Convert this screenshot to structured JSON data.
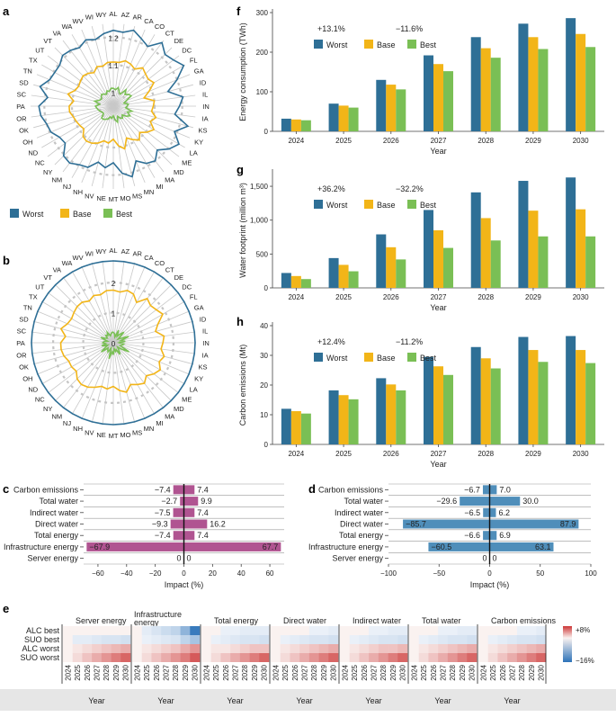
{
  "colors": {
    "worst": "#2e6f96",
    "base": "#f2b518",
    "best": "#7abf55",
    "impact": "#b05491",
    "impact_d": "#4f8eba",
    "grid": "#bbbbbb"
  },
  "panels": {
    "a": "a",
    "b": "b",
    "c": "c",
    "d": "d",
    "e": "e",
    "f": "f",
    "g": "g",
    "h": "h"
  },
  "legend": {
    "worst": "Worst",
    "base": "Base",
    "best": "Best"
  },
  "chart_data": [
    {
      "id": "a",
      "type": "radar",
      "states": [
        "AL",
        "AZ",
        "AR",
        "CA",
        "CO",
        "CT",
        "DE",
        "DC",
        "FL",
        "GA",
        "ID",
        "IL",
        "IN",
        "IA",
        "KS",
        "KY",
        "LA",
        "ME",
        "MD",
        "MA",
        "MI",
        "MN",
        "MS",
        "MO",
        "MT",
        "NE",
        "NV",
        "NH",
        "NJ",
        "NM",
        "NY",
        "NC",
        "ND",
        "OH",
        "OK",
        "OR",
        "PA",
        "SC",
        "SD",
        "TN",
        "TX",
        "UT",
        "VT",
        "VA",
        "WA",
        "WV",
        "WI",
        "WY"
      ],
      "ring_labels": [
        "1",
        "1.1",
        "1.2"
      ],
      "rmin": 0.95,
      "rmax": 1.25,
      "series": [
        {
          "name": "Worst",
          "values": [
            1.225,
            1.22,
            1.235,
            1.215,
            1.2,
            1.24,
            1.215,
            1.225,
            1.245,
            1.2,
            1.155,
            1.205,
            1.19,
            1.175,
            1.23,
            1.19,
            1.225,
            1.205,
            1.175,
            1.2,
            1.19,
            1.165,
            1.215,
            1.195,
            1.155,
            1.175,
            1.16,
            1.19,
            1.195,
            1.21,
            1.205,
            1.17,
            1.175,
            1.195,
            1.2,
            1.215,
            1.22,
            1.19,
            1.225,
            1.2,
            1.195,
            1.195,
            1.21,
            1.205,
            1.195,
            1.21,
            1.2,
            1.215
          ]
        },
        {
          "name": "Base",
          "values": [
            1.11,
            1.11,
            1.12,
            1.115,
            1.105,
            1.125,
            1.115,
            1.11,
            1.12,
            1.09,
            1.065,
            1.1,
            1.095,
            1.09,
            1.11,
            1.095,
            1.12,
            1.105,
            1.085,
            1.105,
            1.09,
            1.075,
            1.11,
            1.095,
            1.07,
            1.085,
            1.08,
            1.095,
            1.105,
            1.11,
            1.105,
            1.085,
            1.09,
            1.095,
            1.1,
            1.11,
            1.11,
            1.095,
            1.12,
            1.1,
            1.095,
            1.1,
            1.105,
            1.1,
            1.09,
            1.105,
            1.1,
            1.11
          ]
        },
        {
          "name": "Best",
          "values": [
            1.015,
            1.01,
            1.02,
            1.005,
            1.0,
            1.025,
            1.01,
            1.02,
            1.025,
            1.0,
            0.99,
            1.005,
            1.0,
            0.995,
            1.02,
            1.005,
            1.02,
            1.01,
            0.995,
            1.005,
            1.0,
            0.99,
            1.01,
            1.0,
            0.985,
            0.995,
            0.99,
            1.0,
            1.005,
            1.01,
            1.01,
            0.995,
            0.995,
            1.0,
            1.005,
            1.01,
            1.015,
            1.0,
            1.02,
            1.005,
            1.0,
            1.005,
            1.01,
            1.005,
            1.0,
            1.01,
            1.005,
            1.015
          ]
        }
      ]
    },
    {
      "id": "b",
      "type": "radar",
      "states": [
        "AL",
        "AZ",
        "AR",
        "CA",
        "CO",
        "CT",
        "DE",
        "DC",
        "FL",
        "GA",
        "ID",
        "IL",
        "IN",
        "IA",
        "KS",
        "KY",
        "LA",
        "ME",
        "MD",
        "MA",
        "MI",
        "MN",
        "MS",
        "MO",
        "MT",
        "NE",
        "NV",
        "NH",
        "NJ",
        "NM",
        "NY",
        "NC",
        "ND",
        "OH",
        "OK",
        "OR",
        "PA",
        "SC",
        "SD",
        "TN",
        "TX",
        "UT",
        "VT",
        "VA",
        "WA",
        "WV",
        "WI",
        "WY"
      ],
      "ring_labels": [
        "0",
        "1",
        "2"
      ],
      "rmin": 0,
      "rmax": 2.75,
      "series": [
        {
          "name": "Worst",
          "values": [
            2.72,
            2.72,
            2.72,
            2.72,
            2.72,
            2.72,
            2.72,
            2.72,
            2.72,
            2.72,
            2.72,
            2.72,
            2.72,
            2.72,
            2.72,
            2.72,
            2.72,
            2.72,
            2.72,
            2.72,
            2.72,
            2.72,
            2.72,
            2.72,
            2.72,
            2.72,
            2.72,
            2.72,
            2.72,
            2.72,
            2.72,
            2.72,
            2.72,
            2.72,
            2.72,
            2.72,
            2.72,
            2.72,
            2.72,
            2.72,
            2.72,
            2.72,
            2.72,
            2.72,
            2.72,
            2.72,
            2.72,
            2.72
          ]
        },
        {
          "name": "Base",
          "values": [
            1.75,
            1.7,
            1.8,
            1.75,
            1.55,
            1.85,
            1.75,
            1.8,
            1.9,
            1.6,
            1.45,
            1.7,
            1.65,
            1.6,
            1.75,
            1.65,
            1.8,
            1.7,
            1.55,
            1.7,
            1.6,
            1.5,
            1.7,
            1.6,
            1.45,
            1.55,
            1.5,
            1.6,
            1.7,
            1.75,
            1.7,
            1.55,
            1.6,
            1.6,
            1.7,
            1.75,
            1.75,
            1.6,
            1.8,
            1.65,
            1.6,
            1.65,
            1.7,
            1.7,
            1.6,
            1.7,
            1.65,
            1.75
          ]
        },
        {
          "name": "Best",
          "values": [
            0.35,
            0.3,
            0.2,
            0.45,
            0.25,
            0.35,
            0.5,
            0.2,
            0.3,
            0.55,
            0.25,
            0.4,
            0.2,
            0.35,
            0.3,
            0.25,
            0.6,
            0.35,
            0.2,
            0.3,
            0.45,
            0.25,
            0.3,
            0.2,
            0.4,
            0.3,
            0.55,
            0.2,
            0.35,
            0.3,
            0.25,
            0.5,
            0.3,
            0.2,
            0.4,
            0.25,
            0.35,
            0.3,
            0.2,
            0.45,
            0.3,
            0.25,
            0.35,
            0.3,
            0.4,
            0.25,
            0.3,
            0.35
          ]
        }
      ]
    },
    {
      "id": "c",
      "type": "diverging-bar",
      "categories": [
        "Carbon emissions",
        "Total water",
        "Indirect water",
        "Direct water",
        "Total energy",
        "Infrastructure energy",
        "Server energy"
      ],
      "neg": [
        -7.4,
        -2.7,
        -7.5,
        -9.3,
        -7.4,
        -67.9,
        0
      ],
      "pos": [
        7.4,
        9.9,
        7.4,
        16.2,
        7.4,
        67.7,
        0
      ],
      "neg_labels": [
        "−7.4",
        "−2.7",
        "−7.5",
        "−9.3",
        "−7.4",
        "−67.9",
        "0"
      ],
      "pos_labels": [
        "7.4",
        "9.9",
        "7.4",
        "16.2",
        "7.4",
        "67.7",
        "0"
      ],
      "xlim": [
        -70,
        70
      ],
      "xticks": [
        -60,
        -40,
        -20,
        0,
        20,
        40,
        60
      ],
      "xtick_labels": [
        "−60",
        "−40",
        "−20",
        "0",
        "20",
        "40",
        "60"
      ],
      "xlabel": "Impact (%)"
    },
    {
      "id": "d",
      "type": "diverging-bar",
      "categories": [
        "Carbon emissions",
        "Total water",
        "Indirect water",
        "Direct water",
        "Total energy",
        "Infrastructure energy",
        "Server energy"
      ],
      "neg": [
        -6.7,
        -29.6,
        -6.5,
        -85.7,
        -6.6,
        -60.5,
        0
      ],
      "pos": [
        7.0,
        30.0,
        6.2,
        87.9,
        6.9,
        63.1,
        0
      ],
      "neg_labels": [
        "−6.7",
        "−29.6",
        "−6.5",
        "−85.7",
        "−6.6",
        "−60.5",
        "0"
      ],
      "pos_labels": [
        "7.0",
        "30.0",
        "6.2",
        "87.9",
        "6.9",
        "63.1",
        "0"
      ],
      "xlim": [
        -100,
        100
      ],
      "xticks": [
        -100,
        -50,
        0,
        50,
        100
      ],
      "xtick_labels": [
        "−100",
        "−50",
        "0",
        "50",
        "100"
      ],
      "xlabel": "Impact (%)"
    },
    {
      "id": "e",
      "type": "heatmap",
      "groups": [
        "Server energy",
        "Infrastructure energy",
        "Total energy",
        "Direct water",
        "Indirect water",
        "Total water",
        "Carbon emissions"
      ],
      "rows": [
        "ALC best",
        "SUO best",
        "ALC worst",
        "SUO worst"
      ],
      "years": [
        "2024",
        "2025",
        "2026",
        "2027",
        "2028",
        "2029",
        "2030"
      ],
      "xlabel": "Year",
      "colorbar": {
        "max_label": "+8%",
        "min_label": "−16%",
        "vmax": 8,
        "vmin": -16
      },
      "values": [
        [
          [
            0,
            0,
            0,
            0,
            0,
            0,
            0
          ],
          [
            0,
            -1,
            -1,
            -1.5,
            -2,
            -2,
            -2.5
          ],
          [
            0,
            0.5,
            1,
            1.5,
            2,
            2.5,
            3
          ],
          [
            0,
            1,
            2,
            3,
            4,
            5,
            6
          ]
        ],
        [
          [
            0,
            -1,
            -2,
            -3,
            -4,
            -8,
            -15
          ],
          [
            0,
            -0.5,
            -1,
            -1.5,
            -2,
            -4,
            -6
          ],
          [
            0,
            0.5,
            1,
            1.5,
            2,
            3,
            4
          ],
          [
            0,
            1,
            2,
            3,
            4,
            5,
            6.5
          ]
        ],
        [
          [
            0,
            0,
            -0.5,
            -0.5,
            -1,
            -1,
            -1
          ],
          [
            0,
            -0.5,
            -1,
            -1.5,
            -2,
            -2,
            -2.5
          ],
          [
            0,
            0.5,
            0.5,
            1,
            1.5,
            2,
            2
          ],
          [
            0,
            1,
            2,
            3,
            4,
            5,
            6
          ]
        ],
        [
          [
            0,
            0,
            0,
            0,
            -0.5,
            -0.5,
            -1
          ],
          [
            0,
            -0.5,
            -1,
            -1.5,
            -2,
            -2,
            -2.5
          ],
          [
            0,
            0.5,
            1,
            1.5,
            2,
            2.5,
            3
          ],
          [
            0,
            1,
            2,
            3,
            4,
            5,
            6
          ]
        ],
        [
          [
            0,
            0,
            0,
            -0.5,
            -0.5,
            -1,
            -1
          ],
          [
            0,
            -0.5,
            -1,
            -1.5,
            -2,
            -2,
            -2.5
          ],
          [
            0,
            0.5,
            1,
            1.5,
            2,
            2,
            2.5
          ],
          [
            0,
            1,
            2,
            3,
            4,
            5,
            6
          ]
        ],
        [
          [
            0,
            0,
            0,
            -0.5,
            -0.5,
            -1,
            -1
          ],
          [
            0,
            -0.5,
            -1,
            -1.5,
            -2,
            -2,
            -2.5
          ],
          [
            0,
            0.5,
            1,
            1.5,
            2,
            2.5,
            3
          ],
          [
            0,
            1,
            2,
            3,
            4,
            5,
            6
          ]
        ],
        [
          [
            0,
            0,
            0,
            0,
            -0.5,
            -0.5,
            -1
          ],
          [
            0,
            -0.5,
            -1,
            -1.5,
            -2,
            -2,
            -2.5
          ],
          [
            0,
            0.5,
            1,
            1.5,
            2,
            2.5,
            3
          ],
          [
            0,
            1,
            2,
            3,
            4,
            5,
            6
          ]
        ]
      ]
    },
    {
      "id": "f",
      "type": "bar",
      "categories": [
        "2024",
        "2025",
        "2026",
        "2027",
        "2028",
        "2029",
        "2030"
      ],
      "xlabel": "Year",
      "ylabel": "Energy consumption (TWh)",
      "ylim": [
        0,
        300
      ],
      "yticks": [
        0,
        100,
        200,
        300
      ],
      "ytick_labels": [
        "0",
        "100",
        "200",
        "300"
      ],
      "annotations": [
        "+13.1%",
        "−11.6%"
      ],
      "series": [
        {
          "name": "Worst",
          "values": [
            32,
            70,
            130,
            192,
            238,
            272,
            286
          ]
        },
        {
          "name": "Base",
          "values": [
            30,
            65,
            118,
            170,
            210,
            238,
            246
          ]
        },
        {
          "name": "Best",
          "values": [
            28,
            60,
            106,
            152,
            186,
            208,
            213
          ]
        }
      ]
    },
    {
      "id": "g",
      "type": "bar",
      "categories": [
        "2024",
        "2025",
        "2026",
        "2027",
        "2028",
        "2029",
        "2030"
      ],
      "xlabel": "Year",
      "ylabel": "Water footprint (million m³)",
      "ylim": [
        0,
        1700
      ],
      "yticks": [
        0,
        500,
        1000,
        1500
      ],
      "ytick_labels": [
        "0",
        "500",
        "1,000",
        "1,500"
      ],
      "annotations": [
        "+36.2%",
        "−32.2%"
      ],
      "series": [
        {
          "name": "Worst",
          "values": [
            220,
            440,
            790,
            1150,
            1410,
            1580,
            1630
          ]
        },
        {
          "name": "Base",
          "values": [
            175,
            340,
            600,
            850,
            1030,
            1140,
            1160
          ]
        },
        {
          "name": "Best",
          "values": [
            130,
            245,
            420,
            590,
            700,
            760,
            760
          ]
        }
      ]
    },
    {
      "id": "h",
      "type": "bar",
      "categories": [
        "2024",
        "2025",
        "2026",
        "2027",
        "2028",
        "2029",
        "2030"
      ],
      "xlabel": "Year",
      "ylabel": "Carbon emissions (Mt)",
      "ylim": [
        0,
        40
      ],
      "yticks": [
        0,
        10,
        20,
        30,
        40
      ],
      "ytick_labels": [
        "0",
        "10",
        "20",
        "30",
        "40"
      ],
      "annotations": [
        "+12.4%",
        "−11.2%"
      ],
      "series": [
        {
          "name": "Worst",
          "values": [
            12,
            18.2,
            22.3,
            29.5,
            32.8,
            36.2,
            36.5
          ]
        },
        {
          "name": "Base",
          "values": [
            11.2,
            16.6,
            20.2,
            26.3,
            29.0,
            31.8,
            31.8
          ]
        },
        {
          "name": "Best",
          "values": [
            10.4,
            15.2,
            18.2,
            23.4,
            25.6,
            27.8,
            27.4
          ]
        }
      ]
    }
  ]
}
